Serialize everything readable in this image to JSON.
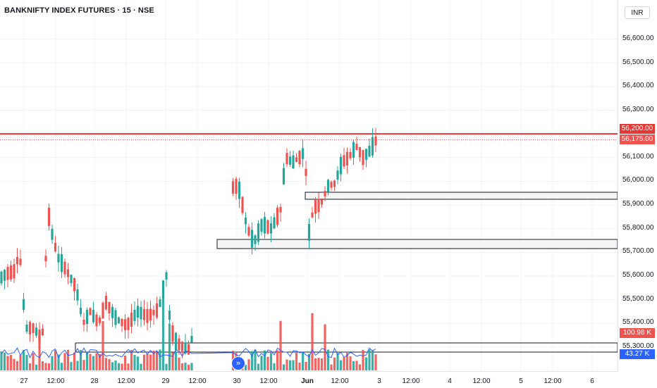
{
  "header": {
    "title": "BANKNIFTY INDEX FUTURES · 15 · NSE"
  },
  "price_axis": {
    "currency": "INR",
    "ticks": [
      "56,600.00",
      "56,500.00",
      "56,400.00",
      "56,300.00",
      "56,200.00",
      "56,100.00",
      "56,000.00",
      "55,900.00",
      "55,800.00",
      "55,700.00",
      "55,600.00",
      "55,500.00",
      "55,400.00",
      "55,300.00"
    ],
    "badges": {
      "resistance": "56,200.00",
      "last_price": "56,175.00",
      "volume": "100.98 K",
      "volume_ma": "43.27 K"
    }
  },
  "time_axis": {
    "labels": [
      "27",
      "12:00",
      "28",
      "12:00",
      "29",
      "12:00",
      "30",
      "12:00",
      "Jun",
      "12:00",
      "3",
      "12:00",
      "4",
      "12:00",
      "5",
      "12:00",
      "6"
    ]
  },
  "colors": {
    "up": "#26a69a",
    "down": "#ef5350",
    "resistance_line": "#e53935",
    "volume_ma": "#2962ff"
  },
  "icons": {
    "goto_realtime": "scroll-to-realtime-icon"
  }
}
